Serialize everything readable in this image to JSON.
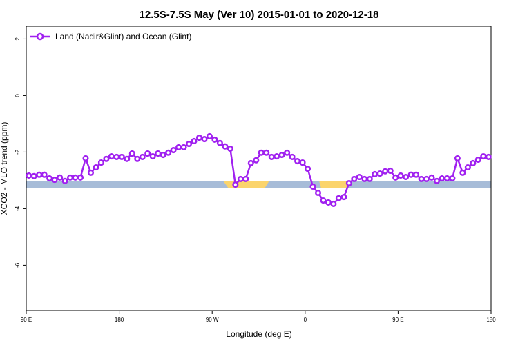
{
  "chart_data": {
    "type": "line",
    "title": "12.5S-7.5S May (Ver 10)   2015-01-01 to 2020-12-18",
    "x_label": "Longitude (deg E)",
    "y_label": "XCO2 - MLO trend (ppm)",
    "x": [
      92.5,
      97.5,
      102.5,
      107.5,
      112.5,
      117.5,
      122.5,
      127.5,
      132.5,
      137.5,
      142.5,
      147.5,
      152.5,
      157.5,
      162.5,
      167.5,
      172.5,
      177.5,
      182.5,
      187.5,
      192.5,
      197.5,
      202.5,
      207.5,
      212.5,
      217.5,
      222.5,
      227.5,
      232.5,
      237.5,
      242.5,
      247.5,
      252.5,
      257.5,
      262.5,
      267.5,
      272.5,
      277.5,
      282.5,
      287.5,
      292.5,
      297.5,
      302.5,
      307.5,
      312.5,
      317.5,
      322.5,
      327.5,
      332.5,
      337.5,
      342.5,
      347.5,
      352.5,
      357.5,
      362.5,
      367.5,
      372.5,
      377.5,
      382.5,
      387.5,
      392.5,
      397.5,
      402.5,
      407.5,
      412.5,
      417.5,
      422.5,
      427.5,
      432.5,
      437.5,
      442.5,
      447.5,
      452.5,
      457.5,
      462.5,
      467.5,
      472.5,
      477.5,
      482.5,
      487.5,
      492.5,
      497.5,
      502.5,
      507.5,
      512.5,
      517.5,
      522.5,
      527.5,
      532.5,
      537.5
    ],
    "series": [
      {
        "name": "Land (Nadir&Glint) and Ocean (Glint)",
        "color": "#a020f0",
        "values": [
          -2.83,
          -2.85,
          -2.8,
          -2.8,
          -2.93,
          -2.98,
          -2.9,
          -3.02,
          -2.9,
          -2.9,
          -2.9,
          -2.22,
          -2.73,
          -2.54,
          -2.37,
          -2.24,
          -2.15,
          -2.17,
          -2.17,
          -2.24,
          -2.05,
          -2.24,
          -2.17,
          -2.05,
          -2.15,
          -2.05,
          -2.1,
          -2.02,
          -1.93,
          -1.83,
          -1.83,
          -1.71,
          -1.61,
          -1.49,
          -1.54,
          -1.44,
          -1.56,
          -1.68,
          -1.8,
          -1.88,
          -3.15,
          -2.95,
          -2.95,
          -2.39,
          -2.29,
          -2.02,
          -2.02,
          -2.17,
          -2.15,
          -2.1,
          -2.02,
          -2.17,
          -2.32,
          -2.37,
          -2.59,
          -3.22,
          -3.44,
          -3.71,
          -3.78,
          -3.83,
          -3.63,
          -3.59,
          -3.1,
          -2.95,
          -2.88,
          -2.95,
          -2.95,
          -2.78,
          -2.76,
          -2.68,
          -2.66,
          -2.9,
          -2.83,
          -2.88,
          -2.8,
          -2.8,
          -2.95,
          -2.95,
          -2.9,
          -3.02,
          -2.93,
          -2.93,
          -2.93,
          -2.22,
          -2.73,
          -2.54,
          -2.39,
          -2.27,
          -2.15,
          -2.17
        ]
      }
    ],
    "xlim": [
      90,
      540
    ],
    "xticks": [
      {
        "value": 90,
        "label": "90 E"
      },
      180,
      {
        "value": 270,
        "label": "90 W"
      },
      {
        "value": 360,
        "label": "0"
      },
      {
        "value": 450,
        "label": "90 E"
      },
      {
        "value": 540,
        "label": "180"
      }
    ],
    "ylim": [
      -7.6,
      2.45
    ],
    "yticks": [
      2,
      0,
      -2,
      -4,
      -6
    ],
    "legend": "top-left"
  }
}
